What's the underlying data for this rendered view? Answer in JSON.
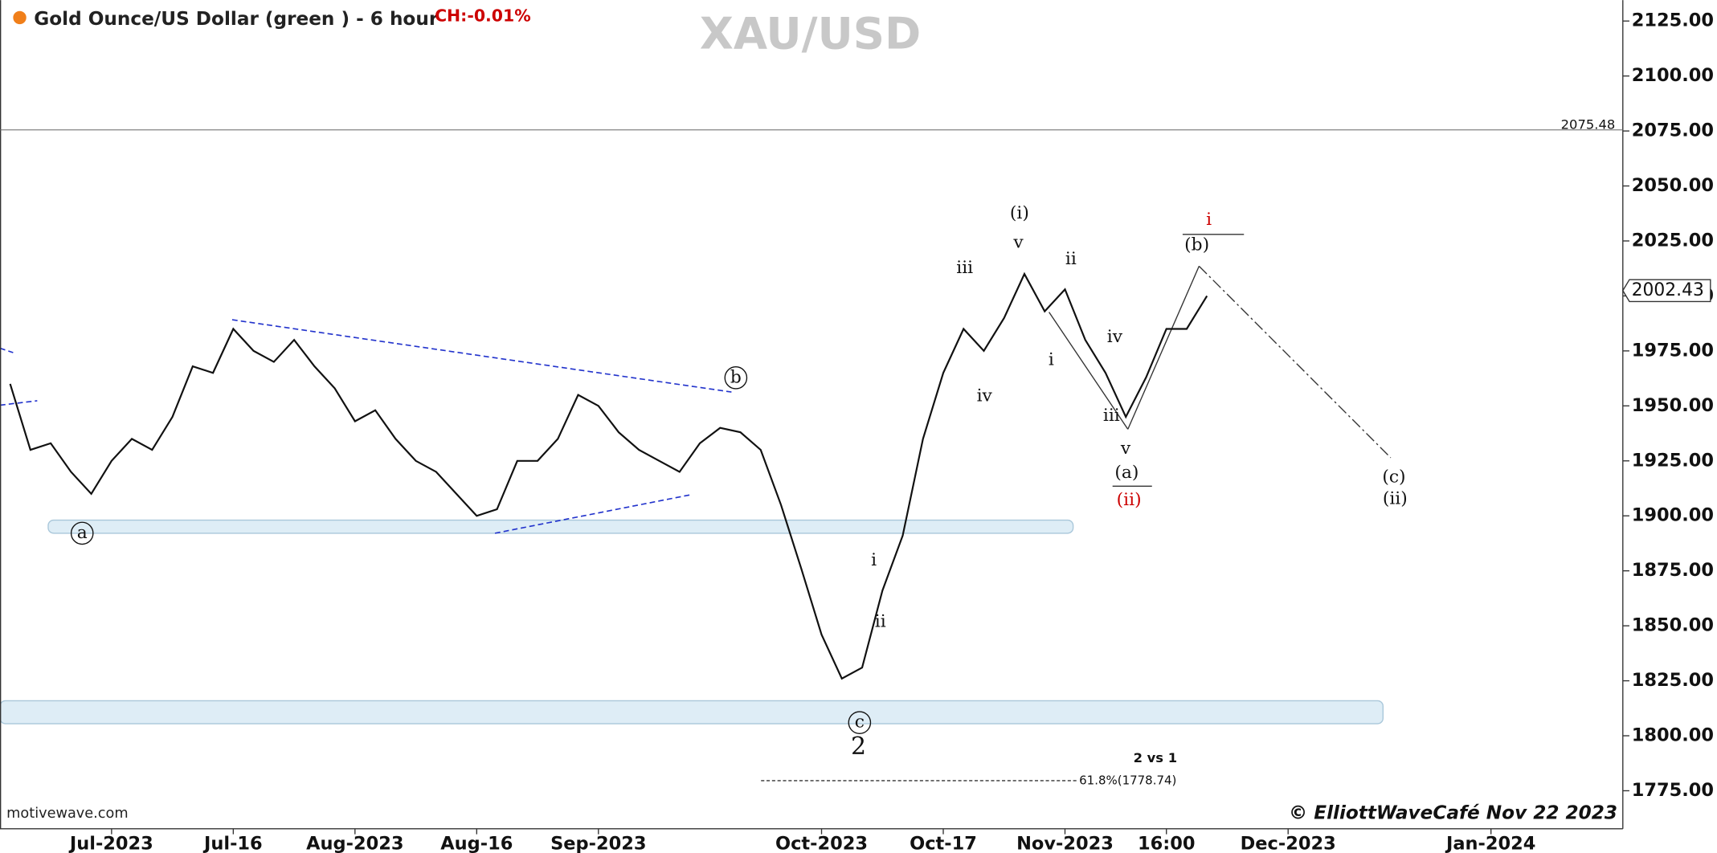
{
  "chart_data": {
    "type": "line",
    "title": "Gold Ounce/US Dollar (green ) - 6 hour",
    "change": "CH:-0.01%",
    "watermark": "XAU/USD",
    "source": "motivewave.com",
    "copyright": "© ElliottWaveCafé Nov 22 2023",
    "note": "2 vs 1",
    "fib_label": "61.8%(1778.74)",
    "categories": [
      null,
      null,
      null,
      null,
      null,
      "Jul-2023",
      null,
      null,
      null,
      null,
      null,
      "Jul-16",
      null,
      null,
      null,
      null,
      null,
      "Aug-2023",
      null,
      null,
      null,
      null,
      null,
      "Aug-16",
      null,
      null,
      null,
      null,
      null,
      "Sep-2023",
      null,
      null,
      null,
      null,
      null,
      null,
      null,
      null,
      null,
      null,
      "Oct-2023",
      null,
      null,
      null,
      null,
      null,
      "Oct-17",
      null,
      null,
      null,
      null,
      null,
      "Nov-2023",
      null,
      null,
      null,
      null,
      "16:00",
      null,
      null,
      null,
      null,
      null,
      "Dec-2023",
      null,
      null,
      null,
      null,
      null,
      null,
      null,
      null,
      null,
      "Jan-2024",
      null,
      null,
      null,
      null,
      null,
      null
    ],
    "series": [
      {
        "color": "#111111",
        "values": [
          1960,
          1930,
          1933,
          1920,
          1910,
          1925,
          1935,
          1930,
          1945,
          1968,
          1965,
          1985,
          1975,
          1970,
          1980,
          1968,
          1958,
          1943,
          1948,
          1935,
          1925,
          1920,
          1910,
          1900,
          1903,
          1925,
          1925,
          1935,
          1955,
          1950,
          1938,
          1930,
          1925,
          1920,
          1933,
          1940,
          1938,
          1930,
          1905,
          1876,
          1846,
          1826,
          1831,
          1866,
          1891,
          1935,
          1965,
          1985,
          1975,
          1990,
          2010,
          1993,
          2003,
          1980,
          1965,
          1945,
          1963,
          1985,
          1985,
          2000,
          null,
          null,
          null,
          null,
          null,
          null,
          null,
          null,
          null,
          null,
          null,
          null,
          null,
          null,
          null,
          null,
          null,
          null,
          null,
          null
        ]
      }
    ],
    "ylim": [
      1757.7,
      2134.5
    ],
    "yticks": [
      {
        "value": 1775,
        "label": "1775.00"
      },
      {
        "value": 1800,
        "label": "1800.00"
      },
      {
        "value": 1825,
        "label": "1825.00"
      },
      {
        "value": 1850,
        "label": "1850.00"
      },
      {
        "value": 1875,
        "label": "1875.00"
      },
      {
        "value": 1900,
        "label": "1900.00"
      },
      {
        "value": 1925,
        "label": "1925.00"
      },
      {
        "value": 1950,
        "label": "1950.00"
      },
      {
        "value": 1975,
        "label": "1975.00"
      },
      {
        "value": 2000,
        "label": "2000.00"
      },
      {
        "value": 2025,
        "label": "2025.00"
      },
      {
        "value": 2050,
        "label": "2050.00"
      },
      {
        "value": 2075,
        "label": "2075.00"
      },
      {
        "value": 2100,
        "label": "2100.00"
      },
      {
        "value": 2125,
        "label": "2125.00"
      }
    ],
    "reference_line": 2075.48,
    "last_price": 2002.43,
    "annotations": [
      "a",
      "b",
      "c",
      "2",
      "(i)",
      "v",
      "iii",
      "iv",
      "ii",
      "i",
      "iv",
      "iii",
      "v",
      "(a)",
      "(ii)",
      "(b)",
      "i",
      "(c)",
      "(ii)",
      "i",
      "ii"
    ]
  }
}
